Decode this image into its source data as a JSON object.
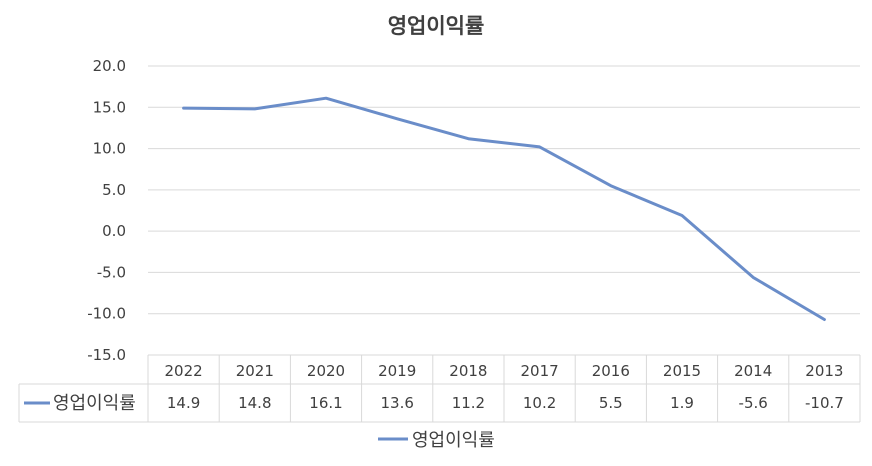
{
  "chart_data": {
    "type": "line",
    "title": "영업이익률",
    "categories": [
      "2022",
      "2021",
      "2020",
      "2019",
      "2018",
      "2017",
      "2016",
      "2015",
      "2014",
      "2013"
    ],
    "series": [
      {
        "name": "영업이익률",
        "values": [
          14.9,
          14.8,
          16.1,
          13.6,
          11.2,
          10.2,
          5.5,
          1.9,
          -5.6,
          -10.7
        ],
        "color": "#6a8dc9"
      }
    ],
    "ylim": [
      -15,
      20
    ],
    "yticks": [
      "20.0",
      "15.0",
      "10.0",
      "5.0",
      "0.0",
      "-5.0",
      "-10.0",
      "-15.0"
    ],
    "table_values": [
      "14.9",
      "14.8",
      "16.1",
      "13.6",
      "11.2",
      "10.2",
      "5.5",
      "1.9",
      "-5.6",
      "-10.7"
    ],
    "grid": true,
    "legend": "bottom",
    "gridColor": "#d9d9d9",
    "textColor": "#404040"
  }
}
